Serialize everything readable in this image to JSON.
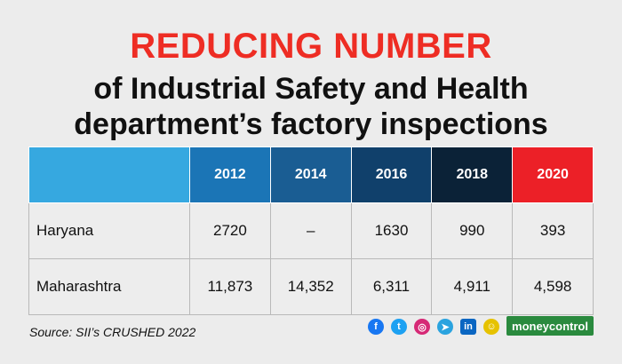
{
  "title": {
    "line1": "REDUCING NUMBER",
    "line2": "of Industrial Safety and Health",
    "line3": "department’s factory inspections"
  },
  "chart_data": {
    "type": "table",
    "columns": [
      "2012",
      "2014",
      "2016",
      "2018",
      "2020"
    ],
    "header_colors": [
      "#36a8e0",
      "#1b75b6",
      "#1a5d93",
      "#10406b",
      "#0b2237",
      "#ec2027"
    ],
    "rows": [
      {
        "label": "Haryana",
        "values": [
          "2720",
          "–",
          "1630",
          "990",
          "393"
        ]
      },
      {
        "label": "Maharashtra",
        "values": [
          "11,873",
          "14,352",
          "6,311",
          "4,911",
          "4,598"
        ]
      }
    ]
  },
  "footer": {
    "source": "Source: SII’s CRUSHED 2022",
    "social_icons": [
      {
        "name": "facebook-icon",
        "glyph": "f",
        "color": "#1877f2"
      },
      {
        "name": "twitter-icon",
        "glyph": "t",
        "color": "#1da1f2"
      },
      {
        "name": "instagram-icon",
        "glyph": "◎",
        "color": "#d62976"
      },
      {
        "name": "telegram-icon",
        "glyph": "➤",
        "color": "#2aa3df"
      },
      {
        "name": "linkedin-icon",
        "glyph": "in",
        "color": "#0a66c2"
      },
      {
        "name": "snapchat-icon",
        "glyph": "☺",
        "color": "#e6c200"
      }
    ],
    "brand": "moneycontrol"
  }
}
